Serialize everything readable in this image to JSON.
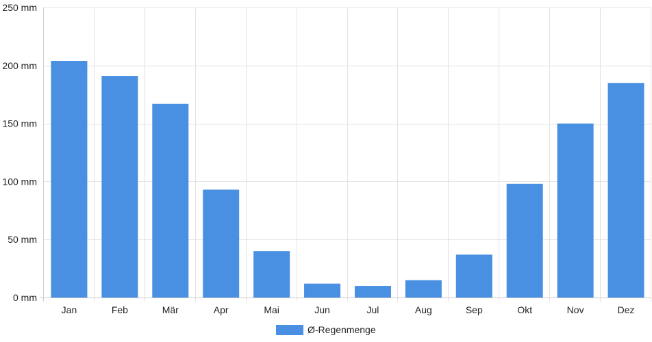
{
  "chart_data": {
    "type": "bar",
    "categories": [
      "Jan",
      "Feb",
      "Mär",
      "Apr",
      "Mai",
      "Jun",
      "Jul",
      "Aug",
      "Sep",
      "Okt",
      "Nov",
      "Dez"
    ],
    "series": [
      {
        "name": "Ø-Regenmenge",
        "color": "#4a90e2",
        "values": [
          204,
          191,
          167,
          93,
          40,
          12,
          10,
          15,
          37,
          98,
          150,
          185
        ]
      }
    ],
    "yticks": [
      "0 mm",
      "50 mm",
      "100 mm",
      "150 mm",
      "200 mm",
      "250 mm"
    ],
    "ylim": [
      0,
      250
    ],
    "grid": true,
    "legend": "bottom-center"
  }
}
